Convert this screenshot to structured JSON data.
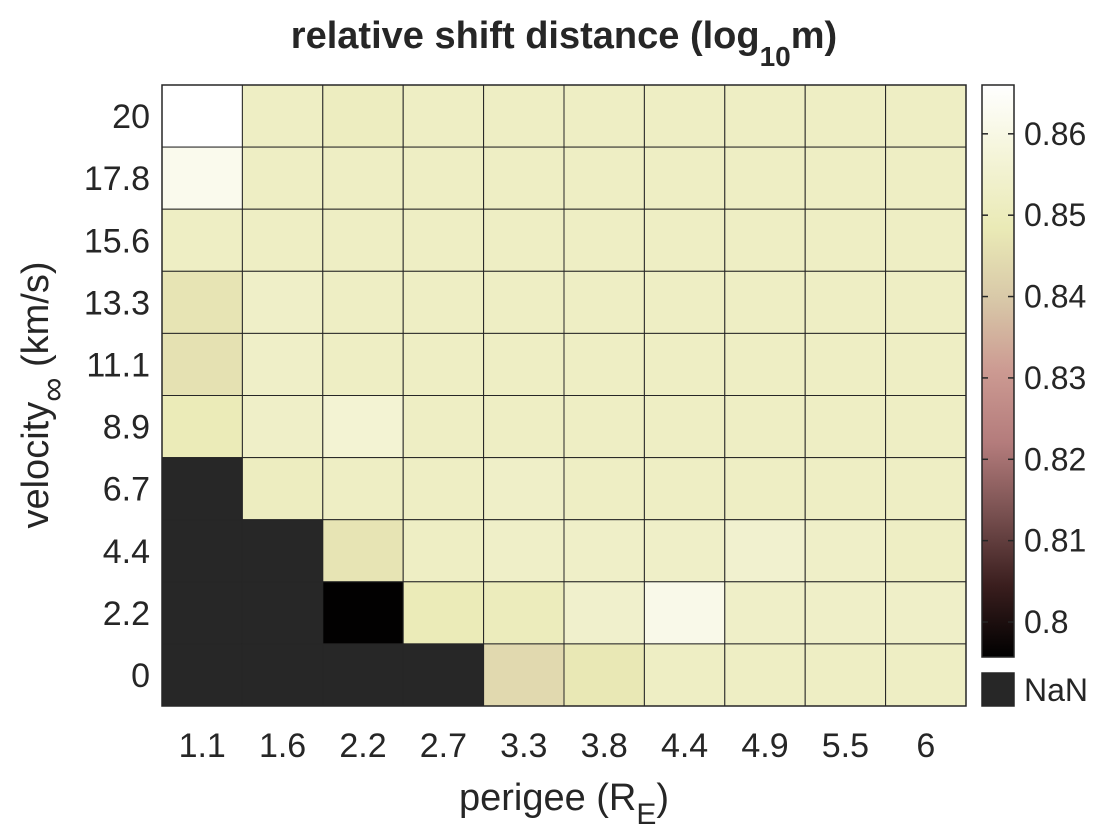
{
  "chart_data": {
    "type": "heatmap",
    "title_main": "relative shift distance (log",
    "title_sub": "10",
    "title_tail": "m)",
    "xlabel_main": "perigee (R",
    "xlabel_sub": "E",
    "xlabel_tail": ")",
    "ylabel_main": "velocity",
    "ylabel_sub": "∞",
    "ylabel_tail": " (km/s)",
    "x_ticks": [
      "1.1",
      "1.6",
      "2.2",
      "2.7",
      "3.3",
      "3.8",
      "4.4",
      "4.9",
      "5.5",
      "6"
    ],
    "y_ticks_top_to_bottom": [
      "20",
      "17.8",
      "15.6",
      "13.3",
      "11.1",
      "8.9",
      "6.7",
      "4.4",
      "2.2",
      "0"
    ],
    "values_top_to_bottom": [
      [
        0.866,
        0.852,
        0.851,
        0.852,
        0.852,
        0.852,
        0.852,
        0.852,
        0.852,
        0.852
      ],
      [
        0.862,
        0.852,
        0.852,
        0.852,
        0.852,
        0.852,
        0.852,
        0.852,
        0.852,
        0.852
      ],
      [
        0.852,
        0.852,
        0.852,
        0.852,
        0.852,
        0.852,
        0.852,
        0.852,
        0.852,
        0.852
      ],
      [
        0.847,
        0.853,
        0.852,
        0.852,
        0.852,
        0.852,
        0.852,
        0.852,
        0.852,
        0.852
      ],
      [
        0.846,
        0.853,
        0.852,
        0.852,
        0.852,
        0.852,
        0.852,
        0.852,
        0.852,
        0.852
      ],
      [
        0.849,
        0.853,
        0.856,
        0.852,
        0.852,
        0.852,
        0.852,
        0.852,
        0.852,
        0.852
      ],
      [
        null,
        0.851,
        0.852,
        0.852,
        0.853,
        0.852,
        0.852,
        0.852,
        0.852,
        0.852
      ],
      [
        null,
        null,
        0.847,
        0.852,
        0.853,
        0.853,
        0.853,
        0.855,
        0.853,
        0.852
      ],
      [
        null,
        null,
        0.796,
        0.849,
        0.85,
        0.854,
        0.861,
        0.853,
        0.853,
        0.853
      ],
      [
        null,
        null,
        null,
        null,
        0.844,
        0.848,
        0.852,
        0.852,
        0.852,
        0.852
      ]
    ],
    "color_range": [
      0.7957,
      0.866
    ],
    "colorbar_ticks": [
      "0.8",
      "0.81",
      "0.82",
      "0.83",
      "0.84",
      "0.85",
      "0.86"
    ],
    "nan_label": "NaN",
    "nan_color": "#272727",
    "colormap": [
      "#000000",
      "#3a1e1e",
      "#785050",
      "#b47c7c",
      "#cc9a92",
      "#d8c8a8",
      "#eaeab6",
      "#f4f4d8",
      "#ffffff"
    ]
  }
}
